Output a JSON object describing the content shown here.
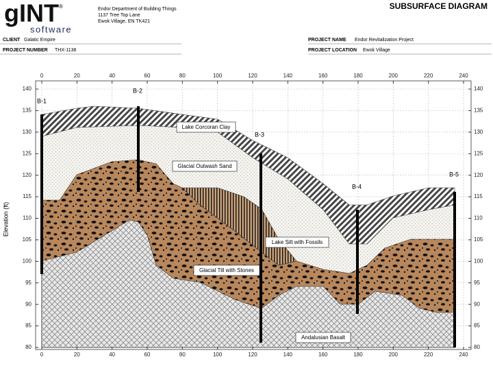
{
  "header": {
    "logo": "gINT",
    "logo_mark": "®",
    "logo_sub": "software",
    "org_lines": [
      "Endor Department of Building Things",
      "1137 Tree Top Lane",
      "Ewok Village, EN TK421"
    ],
    "title": "SUBSURFACE DIAGRAM",
    "client_label": "CLIENT",
    "client": "Galatic Empire",
    "project_number_label": "PROJECT NUMBER",
    "project_number": "THX-1138",
    "project_name_label": "PROJECT NAME",
    "project_name": "Endor Revitalization Project",
    "project_location_label": "PROJECT LOCATION",
    "project_location": "Ewok Village"
  },
  "diagram": {
    "y_label": "Elevation (ft)",
    "xticks": [
      0,
      20,
      40,
      60,
      80,
      100,
      120,
      140,
      160,
      180,
      200,
      220,
      240
    ],
    "yticks": [
      80,
      85,
      90,
      95,
      100,
      105,
      110,
      115,
      120,
      125,
      130,
      135,
      140
    ],
    "grid": true,
    "boreholes": [
      "B-1",
      "B-2",
      "B-3",
      "B-4",
      "B-5"
    ],
    "layers": [
      "Lake Corcoran Clay",
      "Glacial Outwash Sand",
      "Lake Silt with Fossils",
      "Glacial Till with Stones",
      "Andalusian Basalt"
    ]
  }
}
